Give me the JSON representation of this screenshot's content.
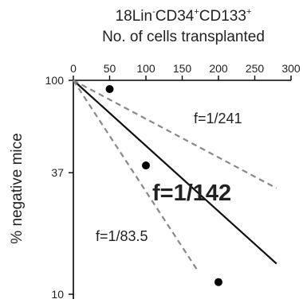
{
  "chart_data": {
    "type": "scatter",
    "title_line1_base": "18Lin",
    "title_sup1": "-",
    "title_mid": "CD34",
    "title_sup2": "+",
    "title_mid2": "CD133",
    "title_sup3": "+",
    "xlabel": "No. of cells transplanted",
    "ylabel": "% negative mice",
    "xlim": [
      0,
      300
    ],
    "ylim": [
      10,
      100
    ],
    "y_scale": "log",
    "x_ticks": [
      "0",
      "50",
      "100",
      "150",
      "200",
      "250",
      "300"
    ],
    "y_ticks": [
      "100",
      "37",
      "10"
    ],
    "points": [
      {
        "x": 50,
        "y": 91
      },
      {
        "x": 100,
        "y": 40
      },
      {
        "x": 200,
        "y": 11.4
      }
    ],
    "lines": [
      {
        "name": "f=1/142",
        "x": [
          0,
          280
        ],
        "y": [
          100,
          13.9
        ],
        "style": "solid"
      },
      {
        "name": "f=1/241",
        "x": [
          0,
          280
        ],
        "y": [
          100,
          31.3
        ],
        "style": "dashed"
      },
      {
        "name": "f=1/83.5",
        "x": [
          0,
          170
        ],
        "y": [
          100,
          13.1
        ],
        "style": "dashed"
      }
    ],
    "annotations": {
      "main": "f=1/142",
      "upper": "f=1/241",
      "lower": "f=1/83.5"
    }
  }
}
